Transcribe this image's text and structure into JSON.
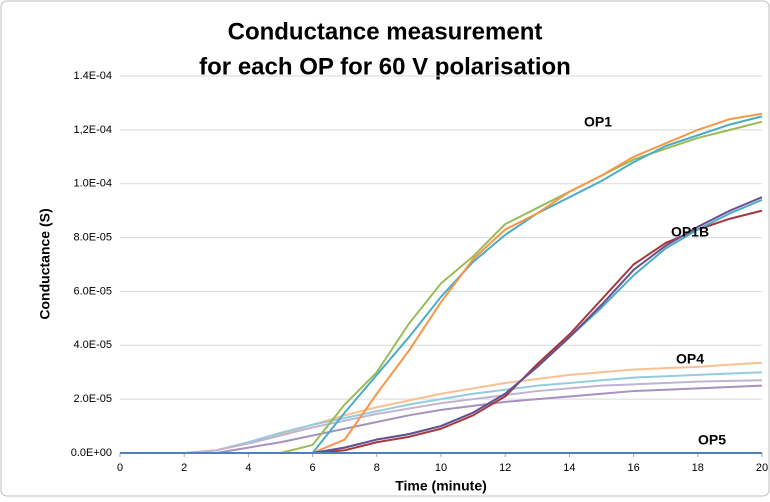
{
  "chart_data": {
    "type": "line",
    "title": [
      "Conductance measurement",
      "for each OP for 60 V polarisation"
    ],
    "x_label": "Time (minute)",
    "y_label": "Conductance (S)",
    "annotations": [
      "OP1",
      "OP1B",
      "OP4",
      "OP5"
    ],
    "x": [
      0,
      1,
      2,
      3,
      4,
      5,
      6,
      7,
      8,
      9,
      10,
      11,
      12,
      13,
      14,
      15,
      16,
      17,
      18,
      19,
      20
    ],
    "xlim": [
      0,
      20
    ],
    "xticks": [
      0,
      2,
      4,
      6,
      8,
      10,
      12,
      14,
      16,
      18,
      20
    ],
    "ylim": [
      0,
      0.00014
    ],
    "yticks": [
      {
        "value": 0,
        "label": "0.0E+00"
      },
      {
        "value": 2e-05,
        "label": "2.0E-05"
      },
      {
        "value": 4e-05,
        "label": "4.0E-05"
      },
      {
        "value": 6e-05,
        "label": "6.0E-05"
      },
      {
        "value": 8e-05,
        "label": "8.0E-05"
      },
      {
        "value": 0.0001,
        "label": "1.0E-04"
      },
      {
        "value": 0.00012,
        "label": "1,2E-04"
      },
      {
        "value": 0.00014,
        "label": "1.4E-04"
      }
    ],
    "grid": true,
    "series": [
      {
        "color": "#fac090",
        "values": [
          0,
          0,
          0,
          1e-06,
          4e-06,
          7e-06,
          1.05e-05,
          1.4e-05,
          1.7e-05,
          1.95e-05,
          2.2e-05,
          2.4e-05,
          2.6e-05,
          2.75e-05,
          2.9e-05,
          3e-05,
          3.1e-05,
          3.15e-05,
          3.2e-05,
          3.28e-05,
          3.35e-05
        ]
      },
      {
        "color": "#93cddd",
        "values": [
          0,
          0,
          0,
          1e-06,
          4e-06,
          7.5e-06,
          1.05e-05,
          1.3e-05,
          1.55e-05,
          1.8e-05,
          2e-05,
          2.2e-05,
          2.35e-05,
          2.5e-05,
          2.6e-05,
          2.7e-05,
          2.8e-05,
          2.85e-05,
          2.9e-05,
          2.95e-05,
          3e-05
        ]
      },
      {
        "color": "#c0b3d3",
        "values": [
          0,
          0,
          0,
          1e-06,
          3.5e-06,
          6.5e-06,
          9.5e-06,
          1.2e-05,
          1.45e-05,
          1.65e-05,
          1.85e-05,
          2e-05,
          2.15e-05,
          2.3e-05,
          2.4e-05,
          2.5e-05,
          2.55e-05,
          2.6e-05,
          2.65e-05,
          2.68e-05,
          2.7e-05
        ]
      },
      {
        "color": "#a592c0",
        "values": [
          0,
          0,
          0,
          0,
          2e-06,
          4e-06,
          6.5e-06,
          9e-06,
          1.15e-05,
          1.4e-05,
          1.6e-05,
          1.75e-05,
          1.9e-05,
          2e-05,
          2.1e-05,
          2.2e-05,
          2.3e-05,
          2.35e-05,
          2.4e-05,
          2.45e-05,
          2.5e-05
        ]
      },
      {
        "color": "#9bbb59",
        "values": [
          0,
          0,
          0,
          0,
          0,
          0,
          3e-06,
          1.8e-05,
          3e-05,
          4.8e-05,
          6.3e-05,
          7.3e-05,
          8.5e-05,
          9.1e-05,
          9.7e-05,
          0.000103,
          0.000109,
          0.000113,
          0.000117,
          0.00012,
          0.000123
        ]
      },
      {
        "color": "#4bacc6",
        "values": [
          0,
          0,
          0,
          0,
          0,
          0,
          0,
          1.5e-05,
          2.9e-05,
          4.3e-05,
          5.8e-05,
          7.1e-05,
          8.1e-05,
          8.9e-05,
          9.5e-05,
          0.000101,
          0.000108,
          0.000114,
          0.000118,
          0.000122,
          0.000125
        ]
      },
      {
        "color": "#f79646",
        "values": [
          0,
          0,
          0,
          0,
          0,
          0,
          0,
          5e-06,
          2.2e-05,
          3.8e-05,
          5.6e-05,
          7.2e-05,
          8.3e-05,
          8.9e-05,
          9.7e-05,
          0.000103,
          0.00011,
          0.000115,
          0.00012,
          0.000124,
          0.000126
        ]
      },
      {
        "color": "#a5373a",
        "values": [
          0,
          0,
          0,
          0,
          0,
          0,
          0,
          1e-06,
          4e-06,
          6e-06,
          9e-06,
          1.4e-05,
          2.1e-05,
          3.3e-05,
          4.4e-05,
          5.7e-05,
          7e-05,
          7.8e-05,
          8.3e-05,
          8.7e-05,
          9e-05
        ]
      },
      {
        "color": "#4bacc6",
        "values": [
          0,
          0,
          0,
          0,
          0,
          0,
          0,
          2e-06,
          5e-06,
          7e-06,
          1e-05,
          1.5e-05,
          2.2e-05,
          3.2e-05,
          4.3e-05,
          5.4e-05,
          6.6e-05,
          7.6e-05,
          8.3e-05,
          8.9e-05,
          9.4e-05
        ]
      },
      {
        "color": "#6a4f90",
        "values": [
          0,
          0,
          0,
          0,
          0,
          0,
          0,
          2e-06,
          5e-06,
          7e-06,
          1e-05,
          1.5e-05,
          2.2e-05,
          3.2e-05,
          4.3e-05,
          5.5e-05,
          6.8e-05,
          7.7e-05,
          8.4e-05,
          9e-05,
          9.5e-05
        ]
      },
      {
        "color": "#4f81bd",
        "values": [
          0,
          0,
          0,
          0,
          0,
          0,
          0,
          0,
          0,
          0,
          0,
          0,
          0,
          0,
          0,
          0,
          0,
          0,
          0,
          0,
          0
        ]
      }
    ]
  }
}
